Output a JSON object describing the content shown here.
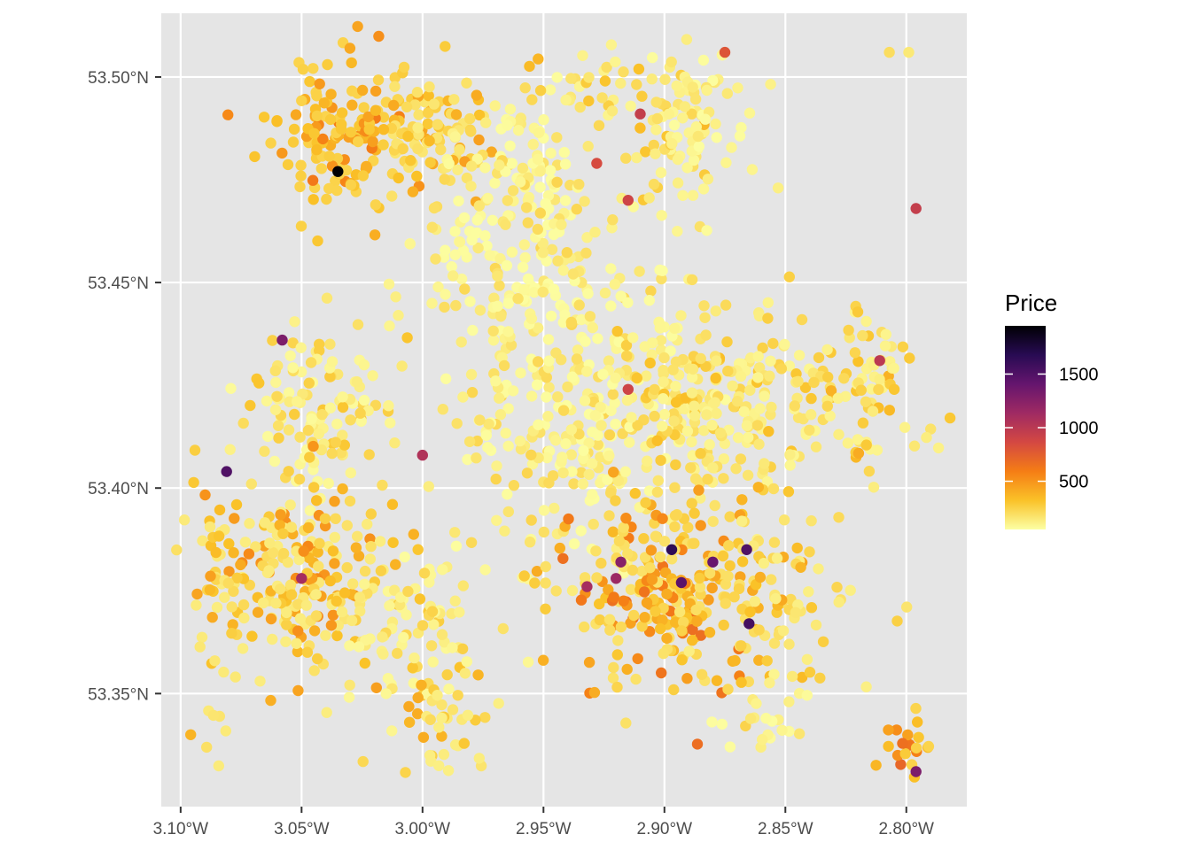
{
  "chart_data": {
    "type": "scatter",
    "title": "",
    "xlabel": "",
    "ylabel": "",
    "grid": true,
    "xlim": [
      -3.108,
      -2.775
    ],
    "ylim": [
      53.3225,
      53.5155
    ],
    "x_ticks": [
      {
        "value": -3.1,
        "label": "3.10°W"
      },
      {
        "value": -3.05,
        "label": "3.05°W"
      },
      {
        "value": -3.0,
        "label": "3.00°W"
      },
      {
        "value": -2.95,
        "label": "2.95°W"
      },
      {
        "value": -2.9,
        "label": "2.90°W"
      },
      {
        "value": -2.85,
        "label": "2.85°W"
      },
      {
        "value": -2.8,
        "label": "2.80°W"
      }
    ],
    "y_ticks": [
      {
        "value": 53.35,
        "label": "53.35°N"
      },
      {
        "value": 53.4,
        "label": "53.40°N"
      },
      {
        "value": 53.45,
        "label": "53.45°N"
      },
      {
        "value": 53.5,
        "label": "53.50°N"
      }
    ],
    "legend": {
      "title": "Price",
      "position": "right",
      "min": 50,
      "max": 1950,
      "ticks": [
        {
          "value": 500,
          "label": "500"
        },
        {
          "value": 1000,
          "label": "1000"
        },
        {
          "value": 1500,
          "label": "1500"
        }
      ],
      "colors": [
        "#fcffa4",
        "#fac228",
        "#f57d15",
        "#d44842",
        "#9f2a63",
        "#65156e",
        "#280b53",
        "#000004"
      ]
    },
    "clusters": [
      {
        "cx": -3.035,
        "cy": 53.487,
        "sx": 0.013,
        "sy": 0.009,
        "n": 140,
        "base": 240,
        "spread": 380
      },
      {
        "cx": -2.995,
        "cy": 53.487,
        "sx": 0.012,
        "sy": 0.007,
        "n": 90,
        "base": 160,
        "spread": 300
      },
      {
        "cx": -2.96,
        "cy": 53.475,
        "sx": 0.018,
        "sy": 0.012,
        "n": 130,
        "base": 60,
        "spread": 170
      },
      {
        "cx": -2.925,
        "cy": 53.5,
        "sx": 0.015,
        "sy": 0.005,
        "n": 30,
        "base": 90,
        "spread": 280
      },
      {
        "cx": -2.895,
        "cy": 53.487,
        "sx": 0.01,
        "sy": 0.01,
        "n": 60,
        "base": 90,
        "spread": 300
      },
      {
        "cx": -2.885,
        "cy": 53.49,
        "sx": 0.01,
        "sy": 0.008,
        "n": 40,
        "base": 60,
        "spread": 120
      },
      {
        "cx": -2.955,
        "cy": 53.452,
        "sx": 0.022,
        "sy": 0.009,
        "n": 100,
        "base": 60,
        "spread": 160
      },
      {
        "cx": -3.045,
        "cy": 53.418,
        "sx": 0.015,
        "sy": 0.01,
        "n": 120,
        "base": 70,
        "spread": 240
      },
      {
        "cx": -3.05,
        "cy": 53.378,
        "sx": 0.018,
        "sy": 0.012,
        "n": 220,
        "base": 130,
        "spread": 420
      },
      {
        "cx": -3.0,
        "cy": 53.365,
        "sx": 0.015,
        "sy": 0.01,
        "n": 80,
        "base": 80,
        "spread": 240
      },
      {
        "cx": -2.99,
        "cy": 53.345,
        "sx": 0.01,
        "sy": 0.007,
        "n": 40,
        "base": 120,
        "spread": 300
      },
      {
        "cx": -2.935,
        "cy": 53.418,
        "sx": 0.028,
        "sy": 0.018,
        "n": 300,
        "base": 60,
        "spread": 180
      },
      {
        "cx": -2.875,
        "cy": 53.42,
        "sx": 0.025,
        "sy": 0.012,
        "n": 240,
        "base": 90,
        "spread": 250
      },
      {
        "cx": -2.9,
        "cy": 53.378,
        "sx": 0.022,
        "sy": 0.012,
        "n": 240,
        "base": 180,
        "spread": 500
      },
      {
        "cx": -2.855,
        "cy": 53.37,
        "sx": 0.018,
        "sy": 0.014,
        "n": 90,
        "base": 120,
        "spread": 320
      },
      {
        "cx": -2.815,
        "cy": 53.425,
        "sx": 0.012,
        "sy": 0.01,
        "n": 70,
        "base": 100,
        "spread": 300
      },
      {
        "cx": -3.085,
        "cy": 53.37,
        "sx": 0.006,
        "sy": 0.02,
        "n": 40,
        "base": 140,
        "spread": 320
      },
      {
        "cx": -2.8,
        "cy": 53.337,
        "sx": 0.006,
        "sy": 0.004,
        "n": 20,
        "base": 240,
        "spread": 500
      },
      {
        "cx": -2.86,
        "cy": 53.345,
        "sx": 0.012,
        "sy": 0.006,
        "n": 20,
        "base": 60,
        "spread": 120
      }
    ],
    "points": [
      {
        "x": -3.035,
        "y": 53.477,
        "price": 1950
      },
      {
        "x": -3.058,
        "y": 53.436,
        "price": 1300
      },
      {
        "x": -3.081,
        "y": 53.404,
        "price": 1500
      },
      {
        "x": -2.897,
        "y": 53.385,
        "price": 1650
      },
      {
        "x": -2.893,
        "y": 53.377,
        "price": 1450
      },
      {
        "x": -2.88,
        "y": 53.382,
        "price": 1400
      },
      {
        "x": -2.866,
        "y": 53.385,
        "price": 1500
      },
      {
        "x": -2.865,
        "y": 53.367,
        "price": 1550
      },
      {
        "x": -2.918,
        "y": 53.382,
        "price": 1250
      },
      {
        "x": -2.92,
        "y": 53.378,
        "price": 1150
      },
      {
        "x": -3.05,
        "y": 53.378,
        "price": 1100
      },
      {
        "x": -2.796,
        "y": 53.331,
        "price": 1300
      },
      {
        "x": -2.796,
        "y": 53.468,
        "price": 950
      },
      {
        "x": -2.811,
        "y": 53.431,
        "price": 1000
      },
      {
        "x": -2.875,
        "y": 53.506,
        "price": 800
      },
      {
        "x": -2.915,
        "y": 53.424,
        "price": 900
      },
      {
        "x": -3.0,
        "y": 53.408,
        "price": 1050
      },
      {
        "x": -2.932,
        "y": 53.376,
        "price": 1100
      },
      {
        "x": -2.928,
        "y": 53.479,
        "price": 850
      },
      {
        "x": -2.91,
        "y": 53.491,
        "price": 950
      },
      {
        "x": -2.915,
        "y": 53.47,
        "price": 900
      },
      {
        "x": -3.01,
        "y": 53.442,
        "price": 120
      },
      {
        "x": -2.97,
        "y": 53.493,
        "price": 110
      },
      {
        "x": -3.03,
        "y": 53.507,
        "price": 420
      },
      {
        "x": -2.807,
        "y": 53.506,
        "price": 200
      },
      {
        "x": -2.799,
        "y": 53.506,
        "price": 150
      },
      {
        "x": -2.853,
        "y": 53.473,
        "price": 120
      },
      {
        "x": -2.805,
        "y": 53.424,
        "price": 300
      }
    ]
  }
}
